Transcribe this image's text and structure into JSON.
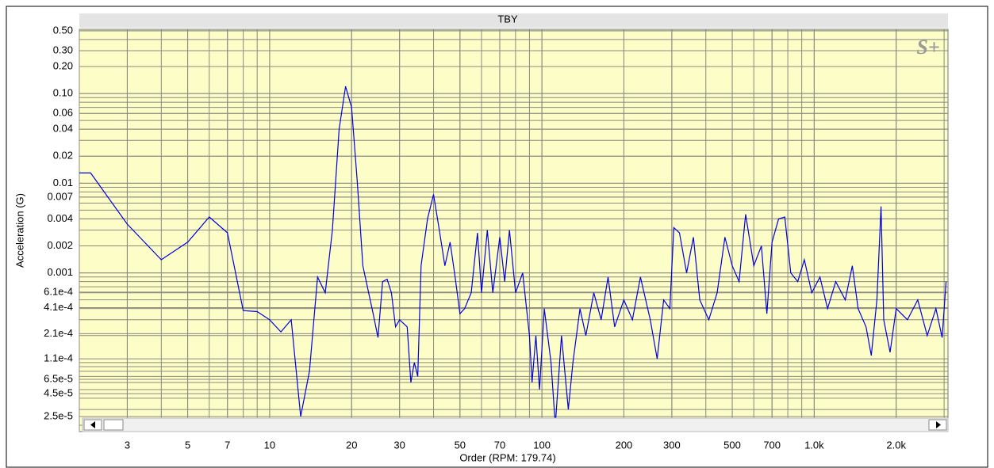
{
  "chart_data": {
    "type": "line",
    "title": "TBY",
    "logo": "S+",
    "x_label": "Order (RPM: 179.74)",
    "y_label": "Acceleration (G)",
    "xscale": "log",
    "yscale": "log",
    "grid": true,
    "minor_grid": true,
    "xlim": [
      2,
      3100
    ],
    "ylim": [
      1.7e-05,
      0.52
    ],
    "xticks": [
      3,
      5,
      7,
      10,
      20,
      30,
      50,
      70,
      100,
      200,
      300,
      500,
      700,
      {
        "value": 1000,
        "label": "1.0k"
      },
      {
        "value": 2000,
        "label": "2.0k"
      }
    ],
    "yticks": [
      {
        "value": 0.5,
        "label": "0.50"
      },
      {
        "value": 0.3,
        "label": "0.30"
      },
      {
        "value": 0.2,
        "label": "0.20"
      },
      {
        "value": 0.1,
        "label": "0.10"
      },
      0.06,
      0.04,
      0.02,
      0.01,
      0.007,
      0.004,
      0.002,
      0.001,
      {
        "value": 0.00061,
        "label": "6.1e-4"
      },
      {
        "value": 0.00041,
        "label": "4.1e-4"
      },
      {
        "value": 0.00021,
        "label": "2.1e-4"
      },
      {
        "value": 0.00011,
        "label": "1.1e-4"
      },
      {
        "value": 6.5e-05,
        "label": "6.5e-5"
      },
      {
        "value": 4.5e-05,
        "label": "4.5e-5"
      },
      {
        "value": 2.5e-05,
        "label": "2.5e-5"
      }
    ],
    "color": "#0000e0",
    "x": [
      2,
      2.2,
      3,
      4,
      5,
      6,
      7,
      8,
      9,
      10,
      11,
      12,
      13,
      14,
      15,
      16,
      17,
      18,
      19,
      20,
      21,
      22,
      24,
      25,
      26,
      27,
      28,
      29,
      30,
      32,
      33,
      34,
      35,
      36,
      38,
      40,
      42,
      44,
      46,
      48,
      50,
      52,
      55,
      58,
      60,
      63,
      66,
      70,
      73,
      76,
      80,
      85,
      90,
      92,
      95,
      98,
      102,
      108,
      112,
      118,
      125,
      130,
      138,
      145,
      155,
      165,
      175,
      185,
      200,
      215,
      230,
      250,
      265,
      280,
      295,
      305,
      320,
      340,
      360,
      380,
      410,
      440,
      470,
      500,
      530,
      560,
      600,
      640,
      670,
      700,
      740,
      780,
      820,
      870,
      920,
      980,
      1050,
      1120,
      1200,
      1300,
      1380,
      1450,
      1550,
      1620,
      1700,
      1760,
      1800,
      1900,
      2000,
      2200,
      2400,
      2600,
      2800,
      2950,
      3050
    ],
    "values": [
      0.013,
      0.013,
      0.0035,
      0.0014,
      0.0022,
      0.0042,
      0.0028,
      0.00038,
      0.00037,
      0.0003,
      0.00022,
      0.0003,
      2.5e-05,
      8e-05,
      0.0009,
      0.0006,
      0.003,
      0.04,
      0.12,
      0.07,
      0.01,
      0.0012,
      0.00035,
      0.00019,
      0.0008,
      0.00085,
      0.0006,
      0.00025,
      0.0003,
      0.00025,
      6e-05,
      0.0001,
      7e-05,
      0.0012,
      0.004,
      0.0075,
      0.003,
      0.0012,
      0.0022,
      0.0009,
      0.00035,
      0.0004,
      0.0006,
      0.0028,
      0.0006,
      0.003,
      0.0006,
      0.0025,
      0.0008,
      0.003,
      0.0006,
      0.001,
      0.0002,
      6e-05,
      0.0002,
      5e-05,
      0.0004,
      0.0001,
      2e-05,
      0.0002,
      3e-05,
      0.0001,
      0.0004,
      0.0002,
      0.0006,
      0.0003,
      0.0009,
      0.00025,
      0.0005,
      0.0003,
      0.0009,
      0.0003,
      0.00011,
      0.0005,
      0.0004,
      0.0032,
      0.0028,
      0.001,
      0.0025,
      0.0005,
      0.0003,
      0.0006,
      0.0025,
      0.0012,
      0.0008,
      0.0045,
      0.0012,
      0.002,
      0.00035,
      0.0022,
      0.004,
      0.0042,
      0.001,
      0.0008,
      0.0014,
      0.0006,
      0.0009,
      0.0004,
      0.0008,
      0.0005,
      0.0012,
      0.0004,
      0.00025,
      0.00012,
      0.0005,
      0.0055,
      0.0003,
      0.00013,
      0.0004,
      0.0003,
      0.0005,
      0.0002,
      0.0004,
      0.00019,
      0.0008
    ]
  }
}
